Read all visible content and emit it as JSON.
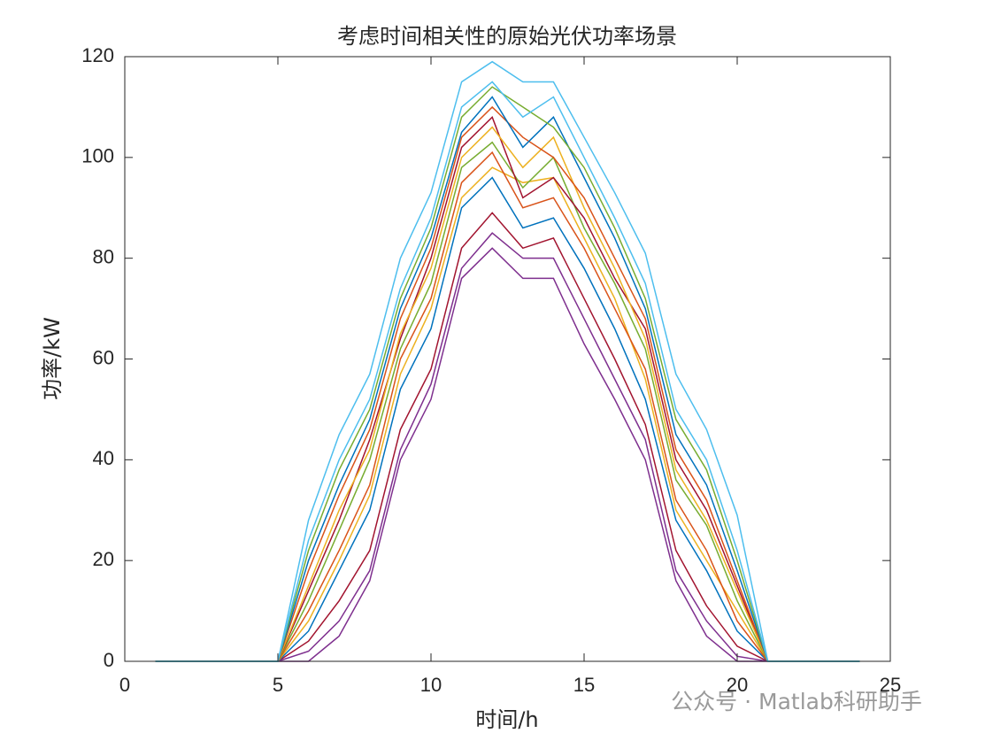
{
  "chart_data": {
    "type": "line",
    "title": "考虑时间相关性的原始光伏功率场景",
    "x_label": "时间/h",
    "y_label": "功率/kW",
    "watermark": "公众号 · Matlab科研助手",
    "x": [
      1,
      2,
      3,
      4,
      5,
      6,
      7,
      8,
      9,
      10,
      11,
      12,
      13,
      14,
      15,
      16,
      17,
      18,
      19,
      20,
      21,
      22,
      23,
      24
    ],
    "xlim": [
      0,
      25
    ],
    "xticks": [
      0,
      5,
      10,
      15,
      20,
      25
    ],
    "ylim": [
      0,
      120
    ],
    "yticks": [
      0,
      20,
      40,
      60,
      80,
      100,
      120
    ],
    "grid": false,
    "series": [
      {
        "color": "#7E2F8E",
        "values": [
          0,
          0,
          0,
          0,
          0,
          0,
          5,
          16,
          40,
          52,
          76,
          82,
          76,
          76,
          63,
          52,
          40,
          16,
          5,
          0,
          0,
          0,
          0,
          0
        ]
      },
      {
        "color": "#A2142F",
        "values": [
          0,
          0,
          0,
          0,
          0,
          4,
          12,
          22,
          46,
          58,
          82,
          89,
          82,
          84,
          72,
          60,
          47,
          22,
          11,
          3,
          0,
          0,
          0,
          0
        ]
      },
      {
        "color": "#7E2F8E",
        "values": [
          0,
          0,
          0,
          0,
          0,
          2,
          8,
          18,
          42,
          55,
          78,
          85,
          80,
          80,
          68,
          56,
          44,
          18,
          8,
          1,
          0,
          0,
          0,
          0
        ]
      },
      {
        "color": "#0072BD",
        "values": [
          0,
          0,
          0,
          0,
          0,
          6,
          18,
          30,
          54,
          66,
          90,
          96,
          86,
          88,
          78,
          66,
          52,
          28,
          18,
          6,
          0,
          0,
          0,
          0
        ]
      },
      {
        "color": "#EDB120",
        "values": [
          0,
          0,
          0,
          0,
          0,
          8,
          20,
          33,
          57,
          70,
          92,
          98,
          95,
          96,
          84,
          72,
          56,
          30,
          20,
          10,
          0,
          0,
          0,
          0
        ]
      },
      {
        "color": "#D95319",
        "values": [
          0,
          0,
          0,
          0,
          0,
          10,
          22,
          35,
          60,
          72,
          95,
          101,
          90,
          92,
          82,
          70,
          58,
          32,
          22,
          8,
          0,
          0,
          0,
          0
        ]
      },
      {
        "color": "#77AC30",
        "values": [
          0,
          0,
          0,
          0,
          0,
          12,
          26,
          40,
          62,
          75,
          98,
          103,
          94,
          100,
          86,
          75,
          62,
          36,
          27,
          12,
          0,
          0,
          0,
          0
        ]
      },
      {
        "color": "#A2142F",
        "values": [
          0,
          0,
          0,
          0,
          0,
          14,
          28,
          44,
          64,
          80,
          102,
          108,
          92,
          96,
          88,
          76,
          66,
          40,
          30,
          15,
          0,
          0,
          0,
          0
        ]
      },
      {
        "color": "#EDB120",
        "values": [
          0,
          0,
          0,
          0,
          0,
          15,
          30,
          42,
          65,
          78,
          100,
          106,
          98,
          104,
          90,
          78,
          64,
          38,
          28,
          14,
          0,
          0,
          0,
          0
        ]
      },
      {
        "color": "#D95319",
        "values": [
          0,
          0,
          0,
          0,
          0,
          18,
          33,
          46,
          68,
          82,
          104,
          110,
          104,
          100,
          92,
          80,
          68,
          42,
          32,
          16,
          0,
          0,
          0,
          0
        ]
      },
      {
        "color": "#0072BD",
        "values": [
          0,
          0,
          0,
          0,
          0,
          20,
          35,
          48,
          70,
          84,
          105,
          112,
          102,
          108,
          96,
          84,
          70,
          45,
          35,
          18,
          0,
          0,
          0,
          0
        ]
      },
      {
        "color": "#77AC30",
        "values": [
          0,
          0,
          0,
          0,
          0,
          22,
          38,
          50,
          72,
          86,
          108,
          114,
          110,
          106,
          98,
          86,
          72,
          48,
          38,
          20,
          0,
          0,
          0,
          0
        ]
      },
      {
        "color": "#4DBEEE",
        "values": [
          0,
          0,
          0,
          0,
          0,
          24,
          40,
          52,
          74,
          88,
          110,
          115,
          108,
          112,
          100,
          88,
          75,
          50,
          40,
          22,
          0,
          0,
          0,
          0
        ]
      },
      {
        "color": "#4DBEEE",
        "values": [
          0,
          0,
          0,
          0,
          0,
          28,
          45,
          57,
          80,
          93,
          115,
          119,
          115,
          115,
          104,
          93,
          81,
          57,
          46,
          29,
          0,
          0,
          0,
          0
        ]
      }
    ]
  }
}
